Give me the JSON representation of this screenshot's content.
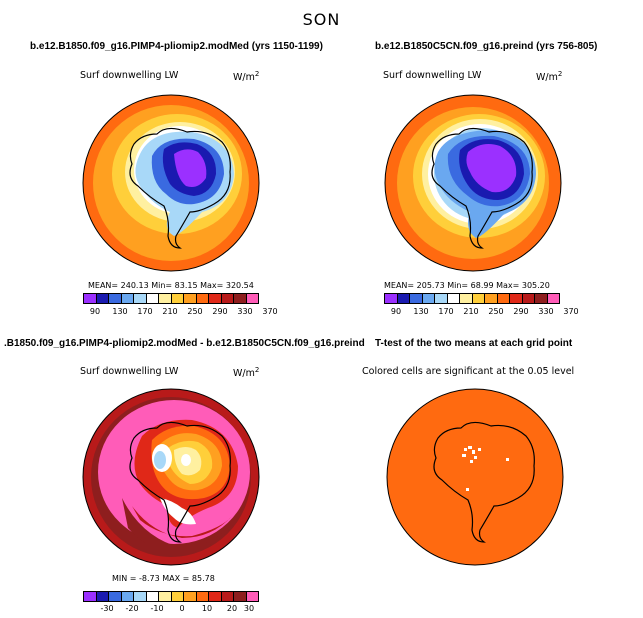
{
  "title": "SON",
  "panels": [
    {
      "title": "b.e12.B1850.f09_g16.PIMP4-pliomip2.modMed (yrs 1150-1199)",
      "variable": "Surf downwelling LW",
      "units": "W/m",
      "units_exp": "2",
      "stats": "MEAN= 240.13   Min=  83.15   Max= 320.54",
      "ticks": [
        "90",
        "130",
        "170",
        "210",
        "250",
        "290",
        "330",
        "370"
      ],
      "colors": [
        "#9b30ff",
        "#1a1ab0",
        "#3a6ae0",
        "#6aa8f0",
        "#a8d8f8",
        "#ffffff",
        "#fff0a0",
        "#ffcf3a",
        "#ffa020",
        "#ff6a10",
        "#e02818",
        "#b81a1a",
        "#8e1e1e",
        "#ff5cb8"
      ]
    },
    {
      "title": "b.e12.B1850C5CN.f09_g16.preind (yrs 756-805)",
      "variable": "Surf downwelling LW",
      "units": "W/m",
      "units_exp": "2",
      "stats": "MEAN= 205.73   Min=  68.99   Max= 305.20",
      "ticks": [
        "90",
        "130",
        "170",
        "210",
        "250",
        "290",
        "330",
        "370"
      ],
      "colors": [
        "#9b30ff",
        "#1a1ab0",
        "#3a6ae0",
        "#6aa8f0",
        "#a8d8f8",
        "#ffffff",
        "#fff0a0",
        "#ffcf3a",
        "#ffa020",
        "#ff6a10",
        "#e02818",
        "#b81a1a",
        "#8e1e1e",
        "#ff5cb8"
      ]
    },
    {
      "title": ".B1850.f09_g16.PIMP4-pliomip2.modMed - b.e12.B1850C5CN.f09_g16.preind",
      "variable": "Surf downwelling LW",
      "units": "W/m",
      "units_exp": "2",
      "stats": "MIN = -8.73  MAX = 85.78",
      "ticks": [
        "-30",
        "-20",
        "-10",
        "0",
        "10",
        "20",
        "30"
      ],
      "colors": [
        "#9b30ff",
        "#1a1ab0",
        "#3a6ae0",
        "#6aa8f0",
        "#a8d8f8",
        "#ffffff",
        "#fff0a0",
        "#ffcf3a",
        "#ffa020",
        "#ff6a10",
        "#e02818",
        "#b81a1a",
        "#8e1e1e",
        "#ff5cb8"
      ]
    },
    {
      "title": "T-test of the two means at each grid point",
      "variable": "Colored cells are significant at the 0.05 level"
    }
  ]
}
